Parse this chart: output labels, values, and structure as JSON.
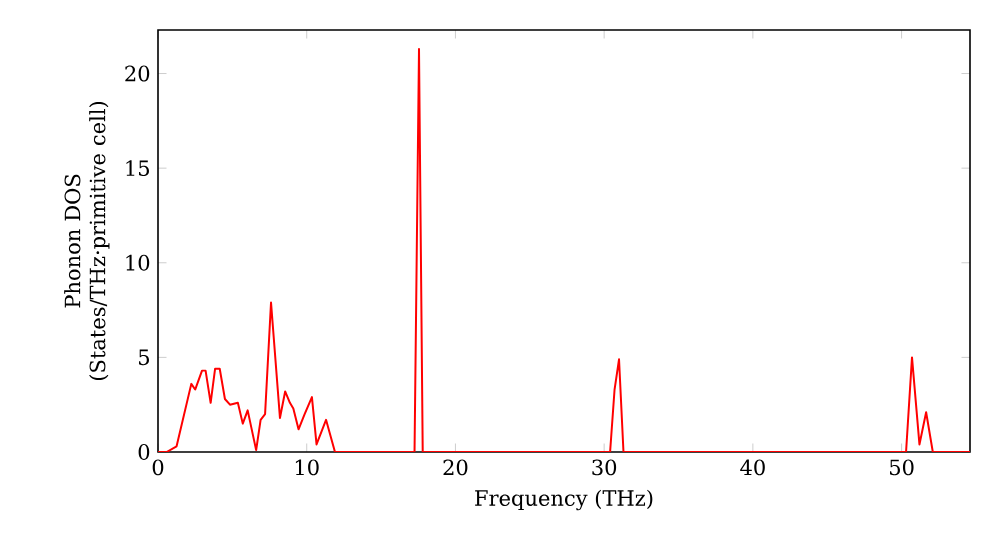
{
  "chart_data": {
    "type": "line",
    "xlabel": "Frequency (THz)",
    "ylabel": "Phonon DOS (States/THz·primitive cell)",
    "xlim": [
      0,
      54.6
    ],
    "ylim": [
      0,
      22.3
    ],
    "xticks": [
      0,
      10,
      20,
      30,
      40,
      50
    ],
    "yticks": [
      0,
      5,
      10,
      15,
      20
    ],
    "grid": false,
    "marker": "none",
    "line_style": "solid",
    "series": [
      {
        "color": "#ff0000",
        "x": [
          0,
          0.58,
          1.25,
          2.24,
          2.5,
          2.96,
          3.2,
          3.54,
          3.84,
          4.15,
          4.5,
          4.84,
          5.37,
          5.7,
          6.03,
          6.6,
          6.9,
          7.2,
          7.6,
          8.2,
          8.55,
          8.87,
          9.1,
          9.45,
          9.86,
          10.35,
          10.66,
          11.3,
          11.9,
          17.25,
          17.55,
          17.8,
          30.4,
          30.7,
          31.0,
          31.3,
          50.3,
          50.7,
          51.2,
          51.65,
          52.1,
          54.6
        ],
        "values": [
          0,
          0,
          0.3,
          3.6,
          3.3,
          4.3,
          4.3,
          2.6,
          4.4,
          4.4,
          2.8,
          2.5,
          2.6,
          1.5,
          2.2,
          0.1,
          1.7,
          2.0,
          7.9,
          1.8,
          3.2,
          2.6,
          2.3,
          1.2,
          2.0,
          2.9,
          0.4,
          1.7,
          0,
          0,
          21.3,
          0,
          0,
          3.3,
          4.9,
          0,
          0,
          5.0,
          0.4,
          2.1,
          0,
          0
        ]
      }
    ]
  }
}
